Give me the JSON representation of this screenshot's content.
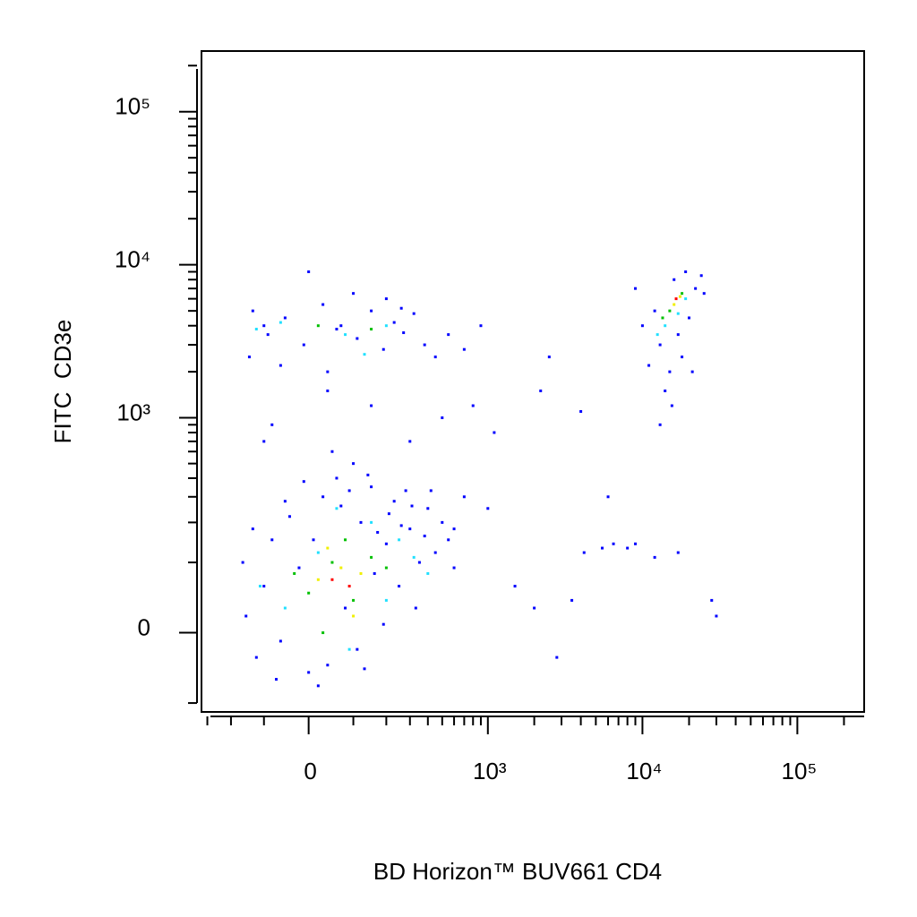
{
  "chart_data": {
    "type": "scatter",
    "x_label": "BD Horizon™ BUV661 CD4",
    "y_label": "FITC  CD3e",
    "xscale": "biexponential",
    "yscale": "biexponential",
    "xlim": [
      -330,
      270000
    ],
    "ylim": [
      -118,
      249000
    ],
    "xticks": [
      0,
      {
        "value": 1000,
        "label": "10³"
      },
      {
        "value": 10000,
        "label": "10⁴"
      },
      {
        "value": 100000,
        "label": "10⁵"
      }
    ],
    "yticks": [
      0,
      {
        "value": 1000,
        "label": "10³"
      },
      {
        "value": 10000,
        "label": "10⁴"
      },
      {
        "value": 100000,
        "label": "10⁵"
      }
    ],
    "xminorticks": [
      -300,
      -200,
      -100,
      100,
      200,
      300,
      400,
      500,
      600,
      700,
      800,
      900,
      2000,
      3000,
      4000,
      5000,
      6000,
      7000,
      8000,
      9000,
      20000,
      30000,
      40000,
      50000,
      60000,
      70000,
      80000,
      90000,
      200000
    ],
    "yminorticks": [
      -100,
      100,
      200,
      300,
      400,
      500,
      600,
      700,
      800,
      900,
      2000,
      3000,
      4000,
      5000,
      6000,
      7000,
      8000,
      9000,
      20000,
      30000,
      40000,
      50000,
      60000,
      70000,
      80000,
      90000,
      200000
    ],
    "series": [
      {
        "color": "#0000ff",
        "x": [
          -150,
          -100,
          -60,
          -20,
          10,
          40,
          80,
          120,
          160,
          200,
          250,
          300,
          350,
          400,
          450,
          -120,
          -80,
          -40,
          0,
          30,
          70,
          110,
          150,
          190,
          230,
          280,
          330,
          380,
          500,
          600,
          -160,
          -130,
          60,
          100,
          20,
          -70,
          130,
          170,
          210,
          260,
          310,
          140,
          90,
          -10,
          -50,
          420,
          550,
          700,
          50,
          -100,
          1500,
          2000,
          2800,
          3500,
          4200,
          5500,
          6500,
          8000,
          12000,
          17000,
          28000,
          30000,
          4000,
          6000,
          9000,
          2200,
          2500,
          800,
          1100,
          600,
          1000,
          -80,
          40,
          150,
          300,
          500,
          -130,
          -90,
          -50,
          -10,
          30,
          70,
          110,
          150,
          190,
          230,
          270,
          320,
          380,
          450,
          -140,
          -60,
          40,
          100,
          200,
          0,
          550,
          700,
          900,
          -100,
          60,
          260,
          13000,
          15000,
          18000,
          20000,
          12000,
          22000,
          16000,
          10000,
          14000,
          25000,
          19000,
          11000,
          17000,
          13000,
          21000,
          9000,
          24000,
          15500
        ],
        "values": [
          20,
          60,
          -10,
          90,
          150,
          -40,
          30,
          200,
          80,
          140,
          60,
          180,
          100,
          250,
          120,
          -30,
          150,
          220,
          -50,
          300,
          260,
          -20,
          350,
          10,
          280,
          330,
          30,
          160,
          200,
          90,
          100,
          180,
          400,
          500,
          -70,
          -60,
          -45,
          170,
          230,
          190,
          260,
          420,
          330,
          380,
          280,
          330,
          150,
          300,
          600,
          700,
          60,
          30,
          -30,
          40,
          120,
          130,
          140,
          130,
          110,
          120,
          40,
          20,
          1100,
          300,
          140,
          1500,
          2500,
          1200,
          800,
          180,
          250,
          900,
          1500,
          1200,
          700,
          1000,
          5000,
          3500,
          4500,
          3000,
          5500,
          4000,
          3300,
          5000,
          2800,
          4200,
          3600,
          4800,
          3000,
          2500,
          2500,
          2200,
          2000,
          6500,
          6000,
          9000,
          3500,
          2800,
          4000,
          4000,
          3800,
          5200,
          3000,
          2000,
          2500,
          4500,
          5000,
          7000,
          8000,
          4000,
          1500,
          6500,
          9000,
          2200,
          3500,
          900,
          2000,
          7000,
          8500,
          1200
        ]
      },
      {
        "color": "#20e0ff",
        "x": [
          -50,
          20,
          90,
          150,
          250,
          60,
          -110,
          200,
          320,
          400,
          -60,
          80,
          200,
          -120,
          130,
          14000,
          17000,
          12500,
          19000
        ],
        "values": [
          30,
          120,
          -20,
          200,
          150,
          250,
          60,
          40,
          110,
          80,
          4200,
          3500,
          4000,
          3800,
          2600,
          4000,
          4800,
          3500,
          6000
        ]
      },
      {
        "color": "#00c000",
        "x": [
          0,
          50,
          100,
          -30,
          150,
          80,
          200,
          30,
          20,
          150,
          15000,
          18000,
          13500
        ],
        "values": [
          50,
          100,
          40,
          80,
          110,
          150,
          90,
          0,
          4000,
          3800,
          5000,
          6500,
          4500
        ]
      },
      {
        "color": "#f0f000",
        "x": [
          20,
          70,
          120,
          40,
          100,
          16000,
          17500
        ],
        "values": [
          70,
          90,
          80,
          130,
          20,
          5500,
          6200
        ]
      },
      {
        "color": "#ff0000",
        "x": [
          50,
          90,
          16500
        ],
        "values": [
          70,
          60,
          6000
        ]
      }
    ]
  }
}
